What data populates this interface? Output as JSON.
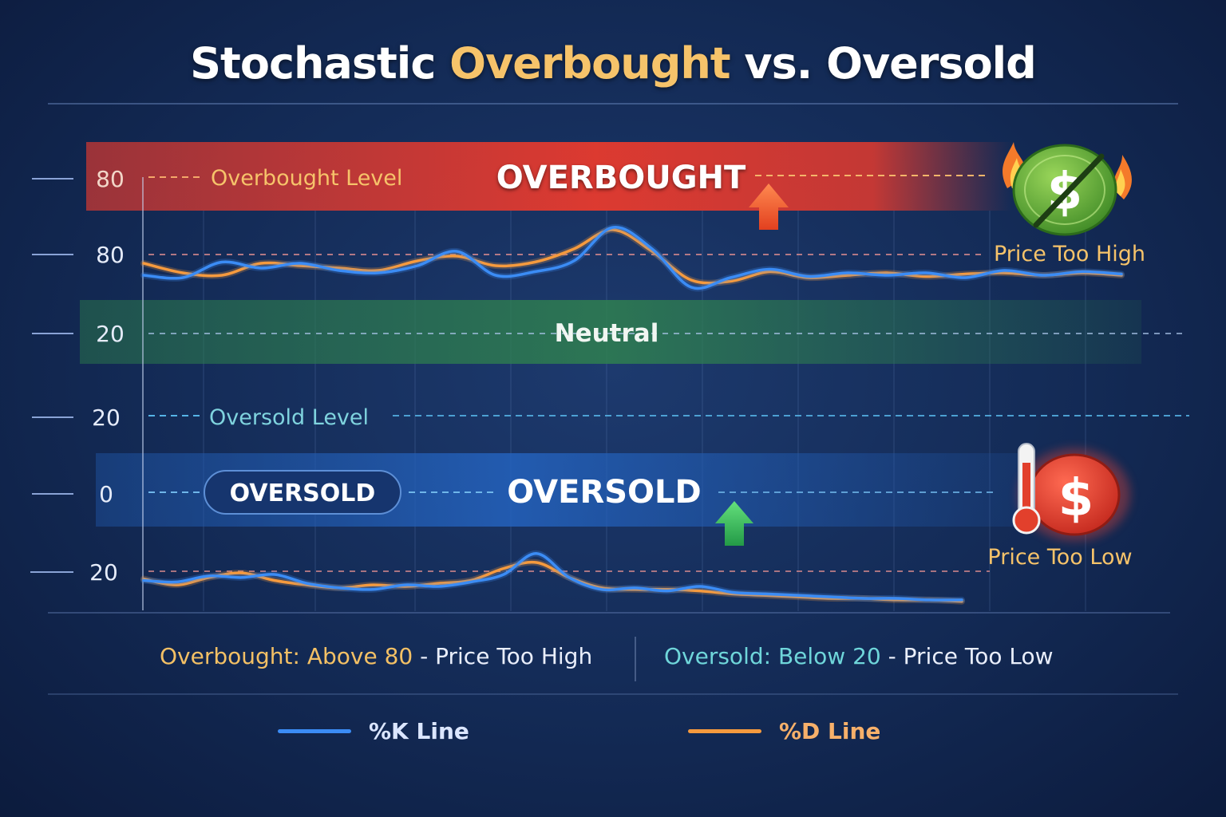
{
  "title": {
    "part1": "Stochastic ",
    "highlight": "Overbought",
    "part2": " vs. Oversold"
  },
  "axis_labels": [
    "80",
    "80",
    "20",
    "20",
    "0",
    "20"
  ],
  "zones": {
    "overbought_level_label": "Overbought Level",
    "overbought_banner": "OVERBOUGHT",
    "neutral_label": "Neutral",
    "oversold_level_label": "Oversold Level",
    "oversold_badge": "OVERSOLD",
    "oversold_banner": "OVERSOLD"
  },
  "callouts": {
    "price_too_high": "Price Too High",
    "price_too_low": "Price Too Low"
  },
  "icons": {
    "overbought": "crossed-dollar-coin-fire-icon",
    "oversold": "thermometer-dollar-coin-icon",
    "up_arrow_red": "up-arrow-icon",
    "up_arrow_green": "up-arrow-icon"
  },
  "summary": {
    "left_key": "Overbought: Above 80",
    "left_rest": " - Price Too High",
    "right_key": "Oversold: Below 20",
    "right_rest": " - Price Too Low"
  },
  "legend": {
    "k_label": "%K Line",
    "d_label": "%D Line"
  },
  "colors": {
    "k_line": "#3b8cf5",
    "d_line": "#f59a3e",
    "overbought_zone": "#e53a2f",
    "neutral_zone": "#2f7a4e",
    "oversold_zone": "#1f56a8",
    "accent_gold": "#f6c36a",
    "accent_teal": "#6fd6da"
  },
  "chart_data": {
    "type": "line",
    "panels": [
      {
        "name": "upper",
        "x": [
          0,
          4,
          8,
          12,
          16,
          20,
          24,
          28,
          32,
          36,
          40,
          44,
          48,
          52,
          56,
          60,
          64,
          68,
          72,
          76,
          80,
          84,
          88,
          92,
          96,
          100
        ],
        "series": [
          {
            "name": "%K Line",
            "values": [
              50,
              48,
              61,
              56,
              60,
              54,
              52,
              58,
              70,
              50,
              53,
              62,
              90,
              72,
              40,
              48,
              55,
              49,
              52,
              50,
              52,
              48,
              54,
              50,
              53,
              51
            ]
          },
          {
            "name": "%D Line",
            "values": [
              60,
              52,
              50,
              60,
              58,
              56,
              54,
              62,
              66,
              58,
              61,
              72,
              88,
              70,
              46,
              45,
              53,
              48,
              50,
              52,
              49,
              51,
              52,
              50,
              52,
              50
            ]
          }
        ]
      },
      {
        "name": "lower",
        "x": [
          0,
          4,
          8,
          12,
          16,
          20,
          24,
          28,
          32,
          36,
          40,
          44,
          48,
          52,
          56,
          60,
          64,
          68,
          72,
          76,
          80,
          84,
          88,
          92,
          96,
          100
        ],
        "series": [
          {
            "name": "%K Line",
            "values": [
              20,
              19,
              23,
              22,
              24,
              18,
              15,
              14,
              17,
              16,
              19,
              24,
              38,
              22,
              14,
              15,
              13,
              16,
              12,
              11,
              10,
              9,
              8,
              8,
              7,
              7
            ]
          },
          {
            "name": "%D Line",
            "values": [
              21,
              17,
              22,
              25,
              20,
              17,
              15,
              17,
              16,
              18,
              20,
              28,
              32,
              22,
              15,
              14,
              14,
              13,
              11,
              10,
              9,
              8,
              8,
              7,
              7,
              6
            ]
          }
        ]
      }
    ]
  }
}
